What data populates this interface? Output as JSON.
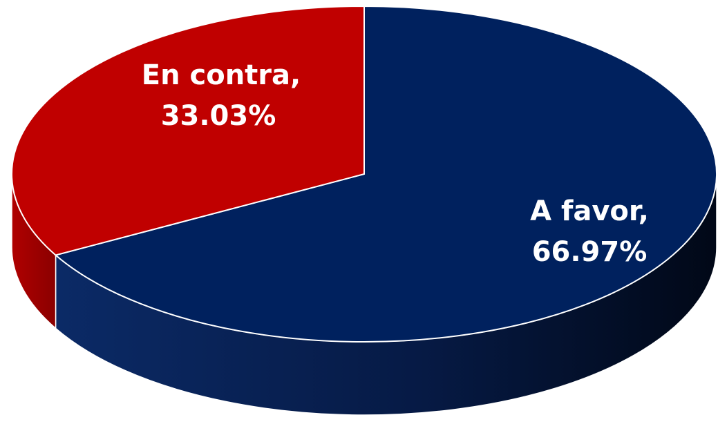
{
  "chart_data": {
    "type": "pie",
    "title": "",
    "three_d": true,
    "slices": [
      {
        "name": "A favor",
        "value": 66.97,
        "color": "#00215E",
        "label": "A favor,",
        "value_label": "66.97%"
      },
      {
        "name": "En contra",
        "value": 33.03,
        "color": "#C00000",
        "label": "En contra,",
        "value_label": "33.03%"
      }
    ],
    "legend": "none"
  }
}
